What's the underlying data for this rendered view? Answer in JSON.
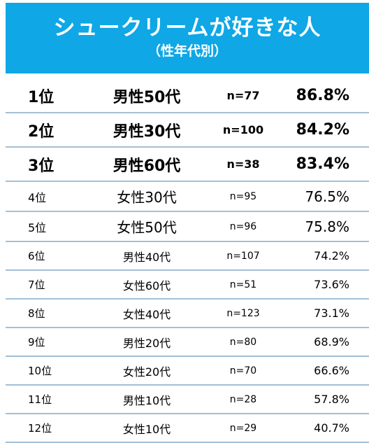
{
  "title": "シュークリームが好きな人",
  "subtitle": "（性年代別）",
  "colors": {
    "header_bg": "#0fa7e6",
    "header_text": "#ffffff",
    "row_divider": "#a3bfd6"
  },
  "chart_data": {
    "type": "table",
    "title": "シュークリームが好きな人",
    "subtitle": "（性年代別）",
    "rows": [
      {
        "rank": "1位",
        "group": "男性50代",
        "n": "n=77",
        "pct": "86.8%"
      },
      {
        "rank": "2位",
        "group": "男性30代",
        "n": "n=100",
        "pct": "84.2%"
      },
      {
        "rank": "3位",
        "group": "男性60代",
        "n": "n=38",
        "pct": "83.4%"
      },
      {
        "rank": "4位",
        "group": "女性30代",
        "n": "n=95",
        "pct": "76.5%"
      },
      {
        "rank": "5位",
        "group": "女性50代",
        "n": "n=96",
        "pct": "75.8%"
      },
      {
        "rank": "6位",
        "group": "男性40代",
        "n": "n=107",
        "pct": "74.2%"
      },
      {
        "rank": "7位",
        "group": "女性60代",
        "n": "n=51",
        "pct": "73.6%"
      },
      {
        "rank": "8位",
        "group": "女性40代",
        "n": "n=123",
        "pct": "73.1%"
      },
      {
        "rank": "9位",
        "group": "男性20代",
        "n": "n=80",
        "pct": "68.9%"
      },
      {
        "rank": "10位",
        "group": "女性20代",
        "n": "n=70",
        "pct": "66.6%"
      },
      {
        "rank": "11位",
        "group": "男性10代",
        "n": "n=28",
        "pct": "57.8%"
      },
      {
        "rank": "12位",
        "group": "女性10代",
        "n": "n=29",
        "pct": "40.7%"
      }
    ]
  }
}
